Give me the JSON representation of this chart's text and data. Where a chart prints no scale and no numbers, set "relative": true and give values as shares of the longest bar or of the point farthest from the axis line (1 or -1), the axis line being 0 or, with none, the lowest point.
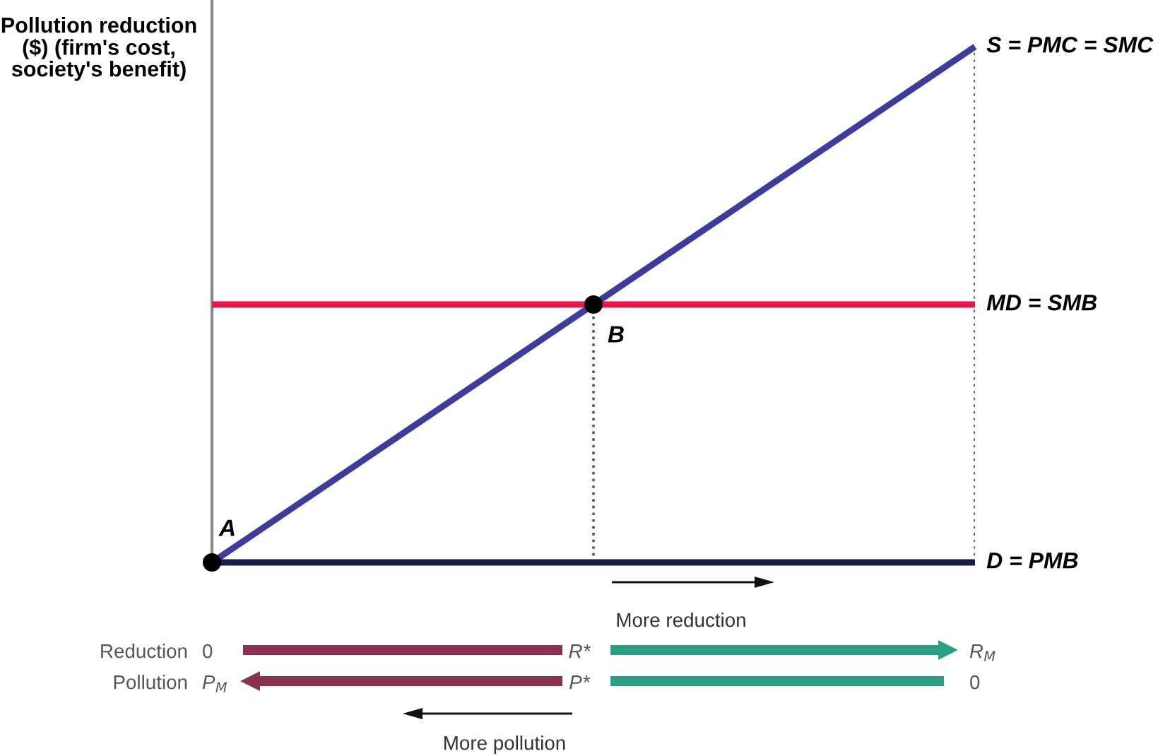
{
  "chart_data": {
    "type": "line",
    "relative": true,
    "ylabel": "Pollution reduction ($) (firm's cost, society's benefit)",
    "categories": [
      null,
      null,
      null
    ],
    "series": [
      {
        "name": "S = PMC = SMC",
        "color": "#3c3c9c",
        "values": [
          0,
          0.5,
          1
        ]
      },
      {
        "name": "MD = SMB",
        "color": "#e8174a",
        "values": [
          0.5,
          0.5,
          0.5
        ]
      },
      {
        "name": "D = PMB",
        "color": "#1c1c48",
        "values": [
          0,
          0,
          0
        ]
      }
    ],
    "annotations": [
      {
        "text": "A",
        "y": 0
      },
      {
        "text": "B",
        "y": 0.5
      },
      "More reduction",
      "Reduction",
      "0",
      "R*",
      "R$_{M}$",
      "Pollution",
      "P$_{M}$",
      "P*",
      "0",
      "More pollution"
    ],
    "legend": false
  }
}
